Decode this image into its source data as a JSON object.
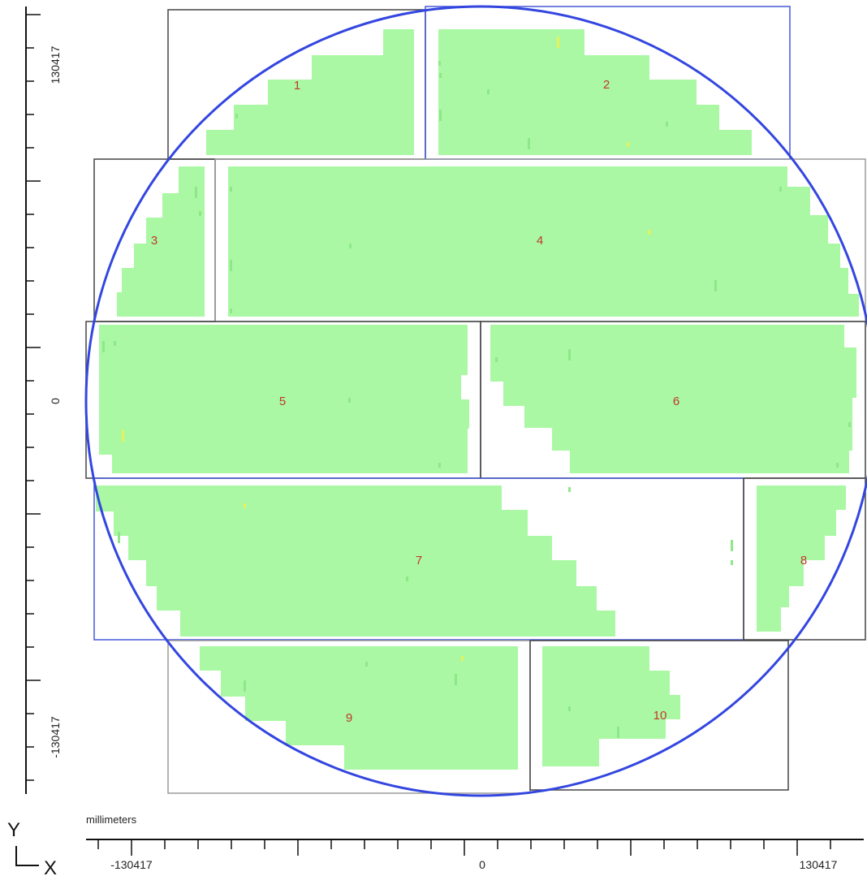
{
  "axes": {
    "x_ticks": [
      "-130417",
      "0",
      "130417"
    ],
    "y_ticks": [
      "130417",
      "0",
      "-130417"
    ],
    "units": "millimeters",
    "y_letter": "Y",
    "x_letter": "X"
  },
  "panels": [
    {
      "label": "1"
    },
    {
      "label": "2"
    },
    {
      "label": "3"
    },
    {
      "label": "4"
    },
    {
      "label": "5"
    },
    {
      "label": "6"
    },
    {
      "label": "7"
    },
    {
      "label": "8"
    },
    {
      "label": "9"
    },
    {
      "label": "10"
    }
  ],
  "colors": {
    "fill": "#aaf8a4",
    "fill_speck": "#8ee888",
    "fill_highlight": "#e5f25a",
    "circle": "#3346e0",
    "frame_dark": "#444444",
    "frame_blue": "#4659d8",
    "frame_light": "#9a9a9a",
    "label": "#c0392b",
    "axis": "#111111"
  }
}
